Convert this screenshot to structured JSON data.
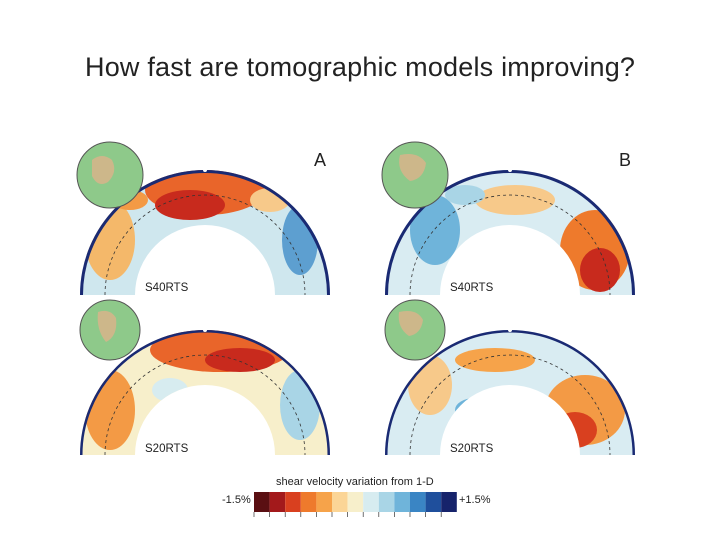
{
  "slide": {
    "title": "How fast are tomographic models improving?"
  },
  "panels": [
    {
      "letter": "A",
      "model": "S40RTS",
      "column": "A",
      "row": "top"
    },
    {
      "letter": "B",
      "model": "S40RTS",
      "column": "B",
      "row": "top"
    },
    {
      "letter": "",
      "model": "S20RTS",
      "column": "A",
      "row": "bottom"
    },
    {
      "letter": "",
      "model": "S20RTS",
      "column": "B",
      "row": "bottom"
    }
  ],
  "colorbar": {
    "title": "shear velocity variation from 1-D",
    "min_label": "-1.5%",
    "max_label": "+1.5%",
    "colors": [
      "#5a0f12",
      "#a3191b",
      "#d9401f",
      "#ee7a2c",
      "#f6a34a",
      "#fbd596",
      "#f7efcb",
      "#d7ecf0",
      "#a9d5e6",
      "#6fb4da",
      "#3a85c4",
      "#1f4f9c",
      "#16236b"
    ]
  }
}
